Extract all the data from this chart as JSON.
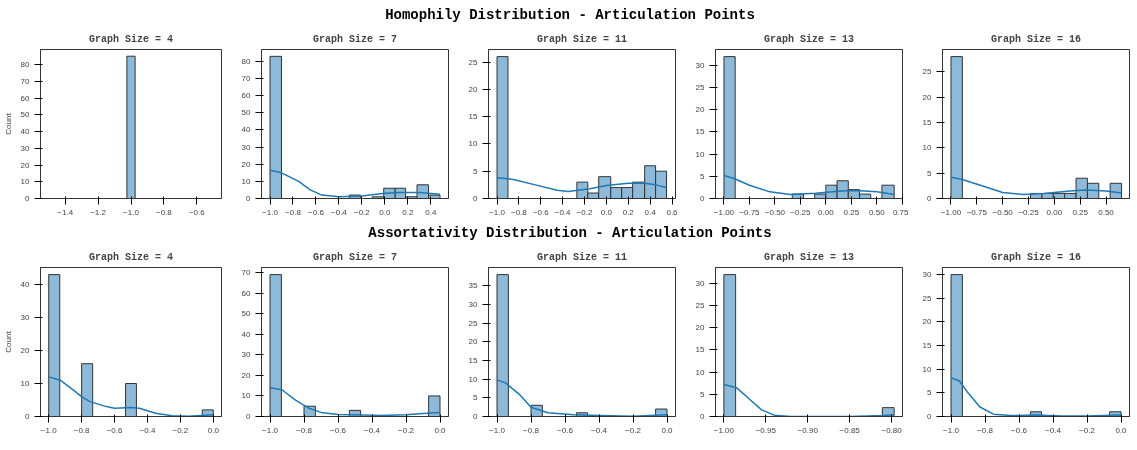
{
  "chart_data": [
    {
      "type": "histogram",
      "title": "Graph Size = 4",
      "ylabel": "Count",
      "annotations": [
        "Homophily Distribution - Articulation Points"
      ],
      "color": "#8ebad9",
      "bins": [
        -1.025,
        -0.975
      ],
      "values": [
        85
      ],
      "xlim": [
        -1.55,
        -0.45
      ],
      "ylim": [
        0,
        89
      ],
      "xticks": [
        {
          "value": -1.4,
          "label": "−1.4"
        },
        {
          "value": -1.2,
          "label": "−1.2"
        },
        {
          "value": -1.0,
          "label": "−1.0"
        },
        {
          "value": -0.8,
          "label": "−0.8"
        },
        {
          "value": -0.6,
          "label": "−0.6"
        }
      ],
      "yticks": [
        0,
        10,
        20,
        30,
        40,
        50,
        60,
        70,
        80
      ]
    },
    {
      "type": "histogram",
      "title": "Graph Size = 7",
      "color": "#8ebad9",
      "bins": [
        -1.0,
        -0.9,
        -0.8,
        -0.7,
        -0.61,
        -0.51,
        -0.41,
        -0.31,
        -0.21,
        -0.11,
        -0.01,
        0.09,
        0.18,
        0.28,
        0.38,
        0.48
      ],
      "values": [
        83,
        0,
        0,
        0,
        0,
        0,
        0,
        2,
        0,
        1,
        6,
        6,
        1,
        8,
        2
      ],
      "xlim": [
        -1.074,
        0.554
      ],
      "ylim": [
        0,
        87
      ],
      "xticks": [
        {
          "value": -1.0,
          "label": "−1.0"
        },
        {
          "value": -0.8,
          "label": "−0.8"
        },
        {
          "value": -0.6,
          "label": "−0.6"
        },
        {
          "value": -0.4,
          "label": "−0.4"
        },
        {
          "value": -0.2,
          "label": "−0.2"
        },
        {
          "value": 0.0,
          "label": "0.0"
        },
        {
          "value": 0.2,
          "label": "0.2"
        },
        {
          "value": 0.4,
          "label": "0.4"
        }
      ],
      "yticks": [
        0,
        10,
        20,
        30,
        40,
        50,
        60,
        70,
        80
      ],
      "series": [
        {
          "type": "line",
          "color": "#1f77b4",
          "x": [
            -1.0,
            -0.9,
            -0.75,
            -0.65,
            -0.55,
            -0.4,
            -0.2,
            0.0,
            0.15,
            0.3,
            0.48
          ],
          "values": [
            16.5,
            15,
            10,
            5,
            2,
            1,
            1.5,
            3,
            3.5,
            3.5,
            2.5
          ]
        }
      ]
    },
    {
      "type": "histogram",
      "title": "Graph Size = 11",
      "color": "#8ebad9",
      "bins": [
        -1.0,
        -0.9,
        -0.79,
        -0.69,
        -0.59,
        -0.48,
        -0.38,
        -0.27,
        -0.17,
        -0.07,
        0.04,
        0.14,
        0.24,
        0.35,
        0.45,
        0.55
      ],
      "values": [
        26,
        0,
        0,
        0,
        0,
        0,
        0,
        3,
        1,
        4,
        2,
        2,
        3,
        6,
        5
      ],
      "xlim": [
        -1.078,
        0.632
      ],
      "ylim": [
        0,
        27.3
      ],
      "xticks": [
        {
          "value": -1.0,
          "label": "−1.0"
        },
        {
          "value": -0.8,
          "label": "−0.8"
        },
        {
          "value": -0.6,
          "label": "−0.6"
        },
        {
          "value": -0.4,
          "label": "−0.4"
        },
        {
          "value": -0.2,
          "label": "−0.2"
        },
        {
          "value": 0.0,
          "label": "0.0"
        },
        {
          "value": 0.2,
          "label": "0.2"
        },
        {
          "value": 0.4,
          "label": "0.4"
        },
        {
          "value": 0.6,
          "label": "0.6"
        }
      ],
      "yticks": [
        0,
        5,
        10,
        15,
        20,
        25
      ],
      "series": [
        {
          "type": "line",
          "color": "#1f77b4",
          "x": [
            -1.0,
            -0.85,
            -0.65,
            -0.45,
            -0.35,
            -0.15,
            0.0,
            0.2,
            0.35,
            0.45,
            0.55
          ],
          "values": [
            3.8,
            3.5,
            2.5,
            1.5,
            1.3,
            1.8,
            2.4,
            2.8,
            2.8,
            2.5,
            2.0
          ]
        }
      ]
    },
    {
      "type": "histogram",
      "title": "Graph Size = 13",
      "color": "#8ebad9",
      "bins": [
        -1.0,
        -0.89,
        -0.78,
        -0.67,
        -0.56,
        -0.45,
        -0.33,
        -0.22,
        -0.11,
        0.0,
        0.11,
        0.22,
        0.33,
        0.44,
        0.55,
        0.67
      ],
      "values": [
        32,
        0,
        0,
        0,
        0,
        0,
        1,
        0,
        1,
        3,
        4,
        2,
        1,
        0,
        3
      ],
      "xlim": [
        -1.083,
        0.752
      ],
      "ylim": [
        0,
        33.6
      ],
      "xticks": [
        {
          "value": -1.0,
          "label": "−1.00"
        },
        {
          "value": -0.75,
          "label": "−0.75"
        },
        {
          "value": -0.5,
          "label": "−0.50"
        },
        {
          "value": -0.25,
          "label": "−0.25"
        },
        {
          "value": 0.0,
          "label": "0.00"
        },
        {
          "value": 0.25,
          "label": "0.25"
        },
        {
          "value": 0.5,
          "label": "0.50"
        },
        {
          "value": 0.75,
          "label": "0.75"
        }
      ],
      "yticks": [
        0,
        5,
        10,
        15,
        20,
        25,
        30
      ],
      "series": [
        {
          "type": "line",
          "color": "#1f77b4",
          "x": [
            -1.0,
            -0.9,
            -0.75,
            -0.55,
            -0.35,
            -0.1,
            0.15,
            0.3,
            0.5,
            0.67
          ],
          "values": [
            5.2,
            4.5,
            3,
            1.5,
            0.9,
            1.2,
            1.7,
            1.8,
            1.5,
            0.9
          ]
        }
      ]
    },
    {
      "type": "histogram",
      "title": "Graph Size = 16",
      "color": "#8ebad9",
      "bins": [
        -1.0,
        -0.89,
        -0.78,
        -0.67,
        -0.56,
        -0.45,
        -0.34,
        -0.23,
        -0.12,
        -0.01,
        0.1,
        0.21,
        0.32,
        0.43,
        0.54,
        0.65
      ],
      "values": [
        28,
        0,
        0,
        0,
        0,
        0,
        0,
        1,
        1,
        1,
        1,
        4,
        3,
        0,
        3
      ],
      "xlim": [
        -1.082,
        0.727
      ],
      "ylim": [
        0,
        29.4
      ],
      "xticks": [
        {
          "value": -1.0,
          "label": "−1.00"
        },
        {
          "value": -0.75,
          "label": "−0.75"
        },
        {
          "value": -0.5,
          "label": "−0.50"
        },
        {
          "value": -0.25,
          "label": "−0.25"
        },
        {
          "value": 0.0,
          "label": "0.00"
        },
        {
          "value": 0.25,
          "label": "0.25"
        },
        {
          "value": 0.5,
          "label": "0.50"
        }
      ],
      "yticks": [
        0,
        5,
        10,
        15,
        20,
        25
      ],
      "series": [
        {
          "type": "line",
          "color": "#1f77b4",
          "x": [
            -1.0,
            -0.9,
            -0.7,
            -0.5,
            -0.3,
            -0.1,
            0.15,
            0.3,
            0.5,
            0.65
          ],
          "values": [
            4.2,
            3.8,
            2.5,
            1.2,
            0.8,
            1.0,
            1.5,
            1.7,
            1.5,
            1.1
          ]
        }
      ]
    },
    {
      "type": "histogram",
      "title": "Graph Size = 4",
      "ylabel": "Count",
      "annotations": [
        "Assortativity Distribution - Articulation Points"
      ],
      "color": "#8ebad9",
      "bins": [
        -1.0,
        -0.933,
        -0.867,
        -0.8,
        -0.733,
        -0.667,
        -0.6,
        -0.533,
        -0.467,
        -0.4,
        -0.333,
        -0.267,
        -0.2,
        -0.133,
        -0.067,
        0.0
      ],
      "values": [
        43,
        0,
        0,
        16,
        0,
        0,
        0,
        10,
        0,
        0,
        0,
        0,
        0,
        0,
        2
      ],
      "xlim": [
        -1.05,
        0.05
      ],
      "ylim": [
        0,
        45.15
      ],
      "xticks": [
        {
          "value": -1.0,
          "label": "−1.0"
        },
        {
          "value": -0.8,
          "label": "−0.8"
        },
        {
          "value": -0.6,
          "label": "−0.6"
        },
        {
          "value": -0.4,
          "label": "−0.4"
        },
        {
          "value": -0.2,
          "label": "−0.2"
        },
        {
          "value": 0.0,
          "label": "0.0"
        }
      ],
      "yticks": [
        0,
        10,
        20,
        30,
        40
      ],
      "series": [
        {
          "type": "line",
          "color": "#1f77b4",
          "x": [
            -1.0,
            -0.93,
            -0.85,
            -0.8,
            -0.75,
            -0.65,
            -0.6,
            -0.5,
            -0.45,
            -0.35,
            -0.25,
            -0.15,
            0.0
          ],
          "values": [
            12,
            11,
            8,
            6,
            4.5,
            3,
            2.5,
            2.7,
            2.5,
            1.0,
            0.2,
            0.1,
            0.5
          ]
        }
      ]
    },
    {
      "type": "histogram",
      "title": "Graph Size = 7",
      "color": "#8ebad9",
      "bins": [
        -1.0,
        -0.933,
        -0.867,
        -0.8,
        -0.733,
        -0.667,
        -0.6,
        -0.533,
        -0.467,
        -0.4,
        -0.333,
        -0.267,
        -0.2,
        -0.133,
        -0.067,
        0.0
      ],
      "values": [
        69,
        0,
        0,
        5,
        0,
        0,
        0,
        3,
        0,
        0,
        0,
        0,
        0,
        0,
        10
      ],
      "xlim": [
        -1.05,
        0.05
      ],
      "ylim": [
        0,
        72.45
      ],
      "xticks": [
        {
          "value": -1.0,
          "label": "−1.0"
        },
        {
          "value": -0.8,
          "label": "−0.8"
        },
        {
          "value": -0.6,
          "label": "−0.6"
        },
        {
          "value": -0.4,
          "label": "−0.4"
        },
        {
          "value": -0.2,
          "label": "−0.2"
        },
        {
          "value": 0.0,
          "label": "0.0"
        }
      ],
      "yticks": [
        0,
        10,
        20,
        30,
        40,
        50,
        60,
        70
      ],
      "series": [
        {
          "type": "line",
          "color": "#1f77b4",
          "x": [
            -1.0,
            -0.93,
            -0.85,
            -0.77,
            -0.7,
            -0.6,
            -0.45,
            -0.35,
            -0.2,
            -0.1,
            0.0
          ],
          "values": [
            14,
            13,
            8,
            4,
            2,
            1,
            0.7,
            0.5,
            0.8,
            1.5,
            2
          ]
        }
      ]
    },
    {
      "type": "histogram",
      "title": "Graph Size = 11",
      "color": "#8ebad9",
      "bins": [
        -1.0,
        -0.933,
        -0.867,
        -0.8,
        -0.733,
        -0.667,
        -0.6,
        -0.533,
        -0.467,
        -0.4,
        -0.333,
        -0.267,
        -0.2,
        -0.133,
        -0.067,
        0.0
      ],
      "values": [
        38,
        0,
        0,
        3,
        0,
        0,
        0,
        1,
        0,
        0,
        0,
        0,
        0,
        0,
        2
      ],
      "xlim": [
        -1.05,
        0.05
      ],
      "ylim": [
        0,
        39.9
      ],
      "xticks": [
        {
          "value": -1.0,
          "label": "−1.0"
        },
        {
          "value": -0.8,
          "label": "−0.8"
        },
        {
          "value": -0.6,
          "label": "−0.6"
        },
        {
          "value": -0.4,
          "label": "−0.4"
        },
        {
          "value": -0.2,
          "label": "−0.2"
        },
        {
          "value": 0.0,
          "label": "0.0"
        }
      ],
      "yticks": [
        0,
        5,
        10,
        15,
        20,
        25,
        30,
        35
      ],
      "series": [
        {
          "type": "line",
          "color": "#1f77b4",
          "x": [
            -1.0,
            -0.95,
            -0.87,
            -0.8,
            -0.7,
            -0.55,
            -0.4,
            -0.2,
            0.0
          ],
          "values": [
            9.8,
            9,
            6,
            2.5,
            1,
            0.5,
            0.3,
            0.1,
            0.5
          ]
        }
      ]
    },
    {
      "type": "histogram",
      "title": "Graph Size = 13",
      "color": "#8ebad9",
      "bins": [
        -1.0,
        -0.986,
        -0.973,
        -0.959,
        -0.946,
        -0.932,
        -0.919,
        -0.905,
        -0.892,
        -0.878,
        -0.865,
        -0.851,
        -0.838,
        -0.824,
        -0.811,
        -0.797
      ],
      "values": [
        32,
        0,
        0,
        0,
        0,
        0,
        0,
        0,
        0,
        0,
        0,
        0,
        0,
        0,
        2
      ],
      "xlim": [
        -1.01,
        -0.787
      ],
      "ylim": [
        0,
        33.6
      ],
      "xticks": [
        {
          "value": -1.0,
          "label": "−1.00"
        },
        {
          "value": -0.95,
          "label": "−0.95"
        },
        {
          "value": -0.9,
          "label": "−0.90"
        },
        {
          "value": -0.85,
          "label": "−0.85"
        },
        {
          "value": -0.8,
          "label": "−0.80"
        }
      ],
      "yticks": [
        0,
        5,
        10,
        15,
        20,
        25,
        30
      ],
      "series": [
        {
          "type": "line",
          "color": "#1f77b4",
          "x": [
            -1.0,
            -0.985,
            -0.97,
            -0.955,
            -0.94,
            -0.92,
            -0.85,
            -0.81,
            -0.797
          ],
          "values": [
            7.2,
            6.5,
            4,
            1.5,
            0.3,
            0,
            0,
            0.2,
            0.4
          ]
        }
      ]
    },
    {
      "type": "histogram",
      "title": "Graph Size = 16",
      "color": "#8ebad9",
      "bins": [
        -1.0,
        -0.933,
        -0.867,
        -0.8,
        -0.733,
        -0.667,
        -0.6,
        -0.533,
        -0.467,
        -0.4,
        -0.333,
        -0.267,
        -0.2,
        -0.133,
        -0.067,
        0.0
      ],
      "values": [
        30,
        0,
        0,
        0,
        0,
        0,
        0,
        1,
        0,
        0,
        0,
        0,
        0,
        0,
        1
      ],
      "xlim": [
        -1.05,
        0.05
      ],
      "ylim": [
        0,
        31.5
      ],
      "xticks": [
        {
          "value": -1.0,
          "label": "−1.0"
        },
        {
          "value": -0.8,
          "label": "−0.8"
        },
        {
          "value": -0.6,
          "label": "−0.6"
        },
        {
          "value": -0.4,
          "label": "−0.4"
        },
        {
          "value": -0.2,
          "label": "−0.2"
        },
        {
          "value": 0.0,
          "label": "0.0"
        }
      ],
      "yticks": [
        0,
        5,
        10,
        15,
        20,
        25,
        30
      ],
      "series": [
        {
          "type": "line",
          "color": "#1f77b4",
          "x": [
            -1.0,
            -0.95,
            -0.9,
            -0.83,
            -0.75,
            -0.65,
            -0.5,
            -0.35,
            -0.2,
            0.0
          ],
          "values": [
            8.2,
            7.5,
            5,
            2,
            0.5,
            0.2,
            0.3,
            0.1,
            0.1,
            0.3
          ]
        }
      ]
    }
  ]
}
